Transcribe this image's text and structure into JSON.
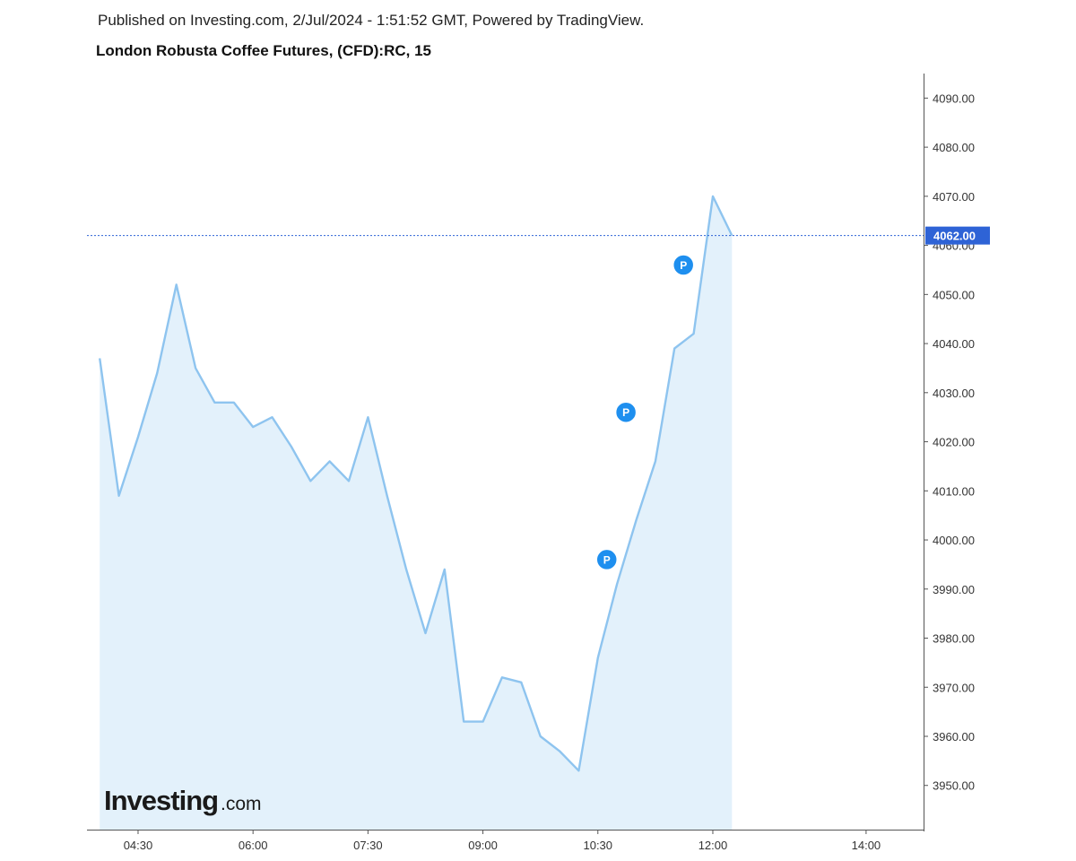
{
  "header": {
    "published": "Published on Investing.com, 2/Jul/2024 - 1:51:52 GMT, Powered by TradingView.",
    "title": "London Robusta Coffee Futures, (CFD):RC, 15"
  },
  "logo": {
    "main": "Investing",
    "suffix": ".com"
  },
  "colors": {
    "line": "#8ec4ef",
    "area": "#e3f1fb",
    "current_price": "#2e63d6",
    "marker": "#1e8fef",
    "axis": "#555555"
  },
  "chart_data": {
    "type": "area",
    "x_unit": "time (HH:MM)",
    "x": [
      "04:00",
      "04:15",
      "04:30",
      "04:45",
      "05:00",
      "05:15",
      "05:30",
      "05:45",
      "06:00",
      "06:15",
      "06:30",
      "06:45",
      "07:00",
      "07:15",
      "07:30",
      "07:45",
      "08:00",
      "08:15",
      "08:30",
      "08:45",
      "09:00",
      "09:15",
      "09:30",
      "09:45",
      "10:00",
      "10:15",
      "10:30",
      "10:45",
      "11:00",
      "11:15",
      "11:30",
      "11:45",
      "12:00",
      "12:15"
    ],
    "values": [
      4037,
      4009,
      4021,
      4034,
      4052,
      4035,
      4028,
      4028,
      4023,
      4025,
      4019,
      4012,
      4016,
      4012,
      4025,
      4009,
      3994,
      3981,
      3994,
      3963,
      3963,
      3972,
      3971,
      3960,
      3957,
      3953,
      3976,
      3991,
      4004,
      4016,
      4039,
      4042,
      4070,
      4062
    ],
    "x_ticks": [
      "04:30",
      "06:00",
      "07:30",
      "09:00",
      "10:30",
      "12:00",
      "14:00"
    ],
    "y_ticks": [
      "4090.00",
      "4080.00",
      "4070.00",
      "4060.00",
      "4050.00",
      "4040.00",
      "4030.00",
      "4020.00",
      "4010.00",
      "4000.00",
      "3990.00",
      "3980.00",
      "3970.00",
      "3960.00",
      "3950.00"
    ],
    "ylim": [
      3941,
      4095
    ],
    "xlim": [
      "03:50",
      "14:45"
    ],
    "current_price": {
      "value": 4062,
      "label": "4062.00"
    },
    "markers": [
      {
        "x": "10:37",
        "y": 3996,
        "label": "P"
      },
      {
        "x": "10:52",
        "y": 4026,
        "label": "P"
      },
      {
        "x": "11:37",
        "y": 4056,
        "label": "P"
      }
    ],
    "grid": false,
    "legend": "none"
  }
}
